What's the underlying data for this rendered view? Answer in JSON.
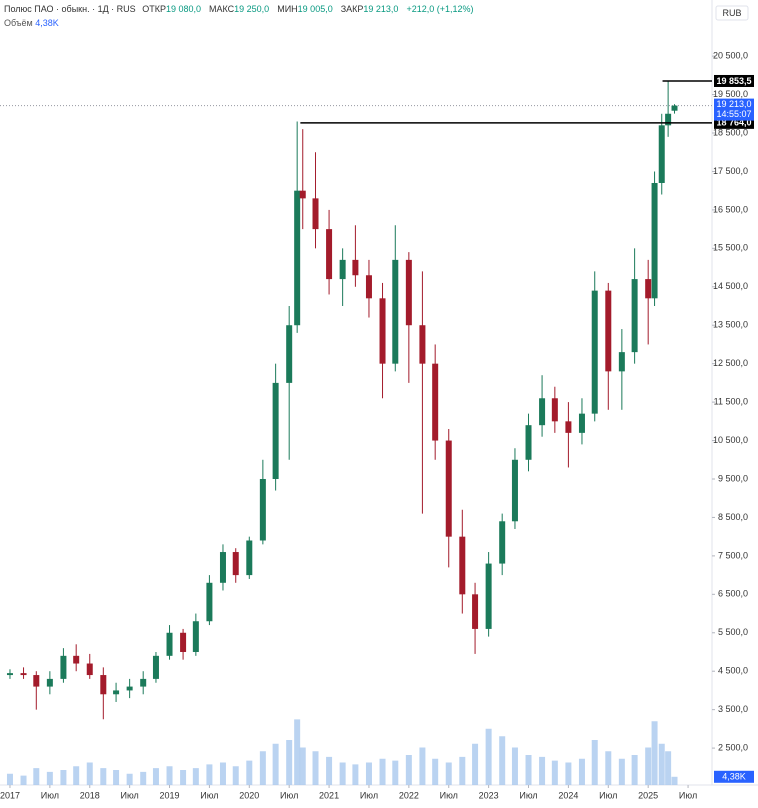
{
  "chart_data": {
    "type": "candlestick",
    "title": "Полюс ПАО · обыкн. · 1Д · RUS",
    "ohlc_legend": [
      {
        "label": "ОТКР",
        "value": "19 080,0"
      },
      {
        "label": "МАКС",
        "value": "19 250,0"
      },
      {
        "label": "МИН",
        "value": "19 005,0"
      },
      {
        "label": "ЗАКР",
        "value": "19 213,0"
      }
    ],
    "change": "+212,0 (+1,12%)",
    "volume_label": "Объём",
    "volume_last": {
      "value": 4.38,
      "label": "4,38K"
    },
    "currency": "RUB",
    "up_color": "#1b7a5a",
    "down_color": "#a31b2b",
    "volume_color": "#a9c8ee",
    "x": [
      2017.0,
      2017.17,
      2017.33,
      2017.5,
      2017.67,
      2017.83,
      2018.0,
      2018.17,
      2018.33,
      2018.5,
      2018.67,
      2018.83,
      2019.0,
      2019.17,
      2019.33,
      2019.5,
      2019.67,
      2019.83,
      2020.0,
      2020.17,
      2020.33,
      2020.5,
      2020.6,
      2020.67,
      2020.83,
      2021.0,
      2021.17,
      2021.33,
      2021.5,
      2021.67,
      2021.83,
      2022.0,
      2022.17,
      2022.33,
      2022.5,
      2022.67,
      2022.83,
      2023.0,
      2023.17,
      2023.33,
      2023.5,
      2023.67,
      2023.83,
      2024.0,
      2024.17,
      2024.33,
      2024.5,
      2024.67,
      2024.83,
      2025.0,
      2025.08,
      2025.17,
      2025.25,
      2025.33
    ],
    "open": [
      4400,
      4450,
      4400,
      4100,
      4300,
      4900,
      4700,
      4400,
      3900,
      4000,
      4100,
      4300,
      4900,
      5500,
      5000,
      5800,
      6800,
      7600,
      7000,
      7900,
      9500,
      12000,
      13500,
      17000,
      16800,
      16000,
      14700,
      15200,
      14800,
      14200,
      12500,
      15200,
      13500,
      12500,
      10500,
      8000,
      6500,
      5600,
      7300,
      8400,
      10000,
      10900,
      11600,
      11000,
      10700,
      11200,
      14400,
      12300,
      12800,
      14700,
      14200,
      17200,
      18700,
      19080
    ],
    "high": [
      4550,
      4600,
      4500,
      4500,
      5100,
      5200,
      4950,
      4600,
      4200,
      4300,
      4500,
      5000,
      5700,
      5600,
      6000,
      7000,
      7800,
      7700,
      8000,
      10000,
      12500,
      14000,
      18800,
      18600,
      18000,
      16500,
      15500,
      16100,
      15200,
      14600,
      16100,
      15400,
      14900,
      13000,
      10800,
      8700,
      6800,
      7600,
      8600,
      10300,
      11200,
      12200,
      11900,
      11500,
      11600,
      14900,
      14600,
      13400,
      15500,
      15200,
      17500,
      19000,
      19853.5,
      19250
    ],
    "low": [
      4300,
      4300,
      3500,
      3900,
      4200,
      4500,
      4300,
      3250,
      3700,
      3800,
      3900,
      4200,
      4800,
      4800,
      4900,
      5700,
      6600,
      6800,
      6900,
      7800,
      9200,
      10000,
      13300,
      16000,
      15500,
      14300,
      14000,
      14500,
      13700,
      11600,
      12300,
      12000,
      8600,
      10000,
      7200,
      6000,
      4950,
      5400,
      7000,
      8200,
      9700,
      10600,
      10700,
      9800,
      10400,
      11000,
      11300,
      11300,
      12500,
      13000,
      14000,
      16900,
      18400,
      19005
    ],
    "close": [
      4450,
      4400,
      4100,
      4300,
      4900,
      4700,
      4400,
      3900,
      4000,
      4100,
      4300,
      4900,
      5500,
      5000,
      5800,
      6800,
      7600,
      7000,
      7900,
      9500,
      12000,
      13500,
      17000,
      16800,
      16000,
      14700,
      15200,
      14800,
      14200,
      12500,
      15200,
      13500,
      12500,
      10500,
      8000,
      6500,
      5600,
      7300,
      8400,
      10000,
      10900,
      11600,
      11000,
      10700,
      11200,
      14400,
      12300,
      12800,
      14700,
      14200,
      17200,
      18700,
      19001,
      19213
    ],
    "volume": [
      6,
      5,
      9,
      7,
      8,
      10,
      12,
      9,
      8,
      6,
      7,
      9,
      10,
      8,
      9,
      11,
      12,
      10,
      13,
      18,
      22,
      24,
      35,
      20,
      18,
      15,
      12,
      11,
      12,
      14,
      13,
      16,
      20,
      14,
      12,
      15,
      22,
      30,
      26,
      20,
      16,
      15,
      13,
      12,
      14,
      24,
      18,
      14,
      16,
      20,
      34,
      22,
      18,
      4.38
    ],
    "vlim": [
      0,
      40
    ],
    "xlim": [
      2016.875,
      2025.8
    ],
    "xticks": [
      {
        "value": 2017,
        "label": "2017"
      },
      {
        "value": 2017.5,
        "label": "Июл"
      },
      {
        "value": 2018,
        "label": "2018"
      },
      {
        "value": 2018.5,
        "label": "Июл"
      },
      {
        "value": 2019,
        "label": "2019"
      },
      {
        "value": 2019.5,
        "label": "Июл"
      },
      {
        "value": 2020,
        "label": "2020"
      },
      {
        "value": 2020.5,
        "label": "Июл"
      },
      {
        "value": 2021,
        "label": "2021"
      },
      {
        "value": 2021.5,
        "label": "Июл"
      },
      {
        "value": 2022,
        "label": "2022"
      },
      {
        "value": 2022.5,
        "label": "Июл"
      },
      {
        "value": 2023,
        "label": "2023"
      },
      {
        "value": 2023.5,
        "label": "Июл"
      },
      {
        "value": 2024,
        "label": "2024"
      },
      {
        "value": 2024.5,
        "label": "Июл"
      },
      {
        "value": 2025,
        "label": "2025"
      },
      {
        "value": 2025.5,
        "label": "Июл"
      }
    ],
    "ylim": [
      1540,
      21960
    ],
    "yticks": [
      {
        "value": 20500,
        "label": "20 500,0"
      },
      {
        "value": 19500,
        "label": "19 500,0"
      },
      {
        "value": 18500,
        "label": "18 500,0"
      },
      {
        "value": 17500,
        "label": "17 500,0"
      },
      {
        "value": 16500,
        "label": "16 500,0"
      },
      {
        "value": 15500,
        "label": "15 500,0"
      },
      {
        "value": 14500,
        "label": "14 500,0"
      },
      {
        "value": 13500,
        "label": "13 500,0"
      },
      {
        "value": 12500,
        "label": "12 500,0"
      },
      {
        "value": 11500,
        "label": "11 500,0"
      },
      {
        "value": 10500,
        "label": "10 500,0"
      },
      {
        "value": 9500,
        "label": "9 500,0"
      },
      {
        "value": 8500,
        "label": "8 500,0"
      },
      {
        "value": 7500,
        "label": "7 500,0"
      },
      {
        "value": 6500,
        "label": "6 500,0"
      },
      {
        "value": 5500,
        "label": "5 500,0"
      },
      {
        "value": 4500,
        "label": "4 500,0"
      },
      {
        "value": 3500,
        "label": "3 500,0"
      },
      {
        "value": 2500,
        "label": "2 500,0"
      }
    ],
    "price_lines": [
      {
        "value": 19853.5,
        "label": "19 853,5",
        "x_start": 2025.18
      },
      {
        "value": 18764,
        "label": "18 764,0",
        "x_start": 2020.64
      }
    ],
    "last_price": {
      "value": 19213,
      "label": "19 213,0",
      "time": "14:55:07"
    }
  }
}
